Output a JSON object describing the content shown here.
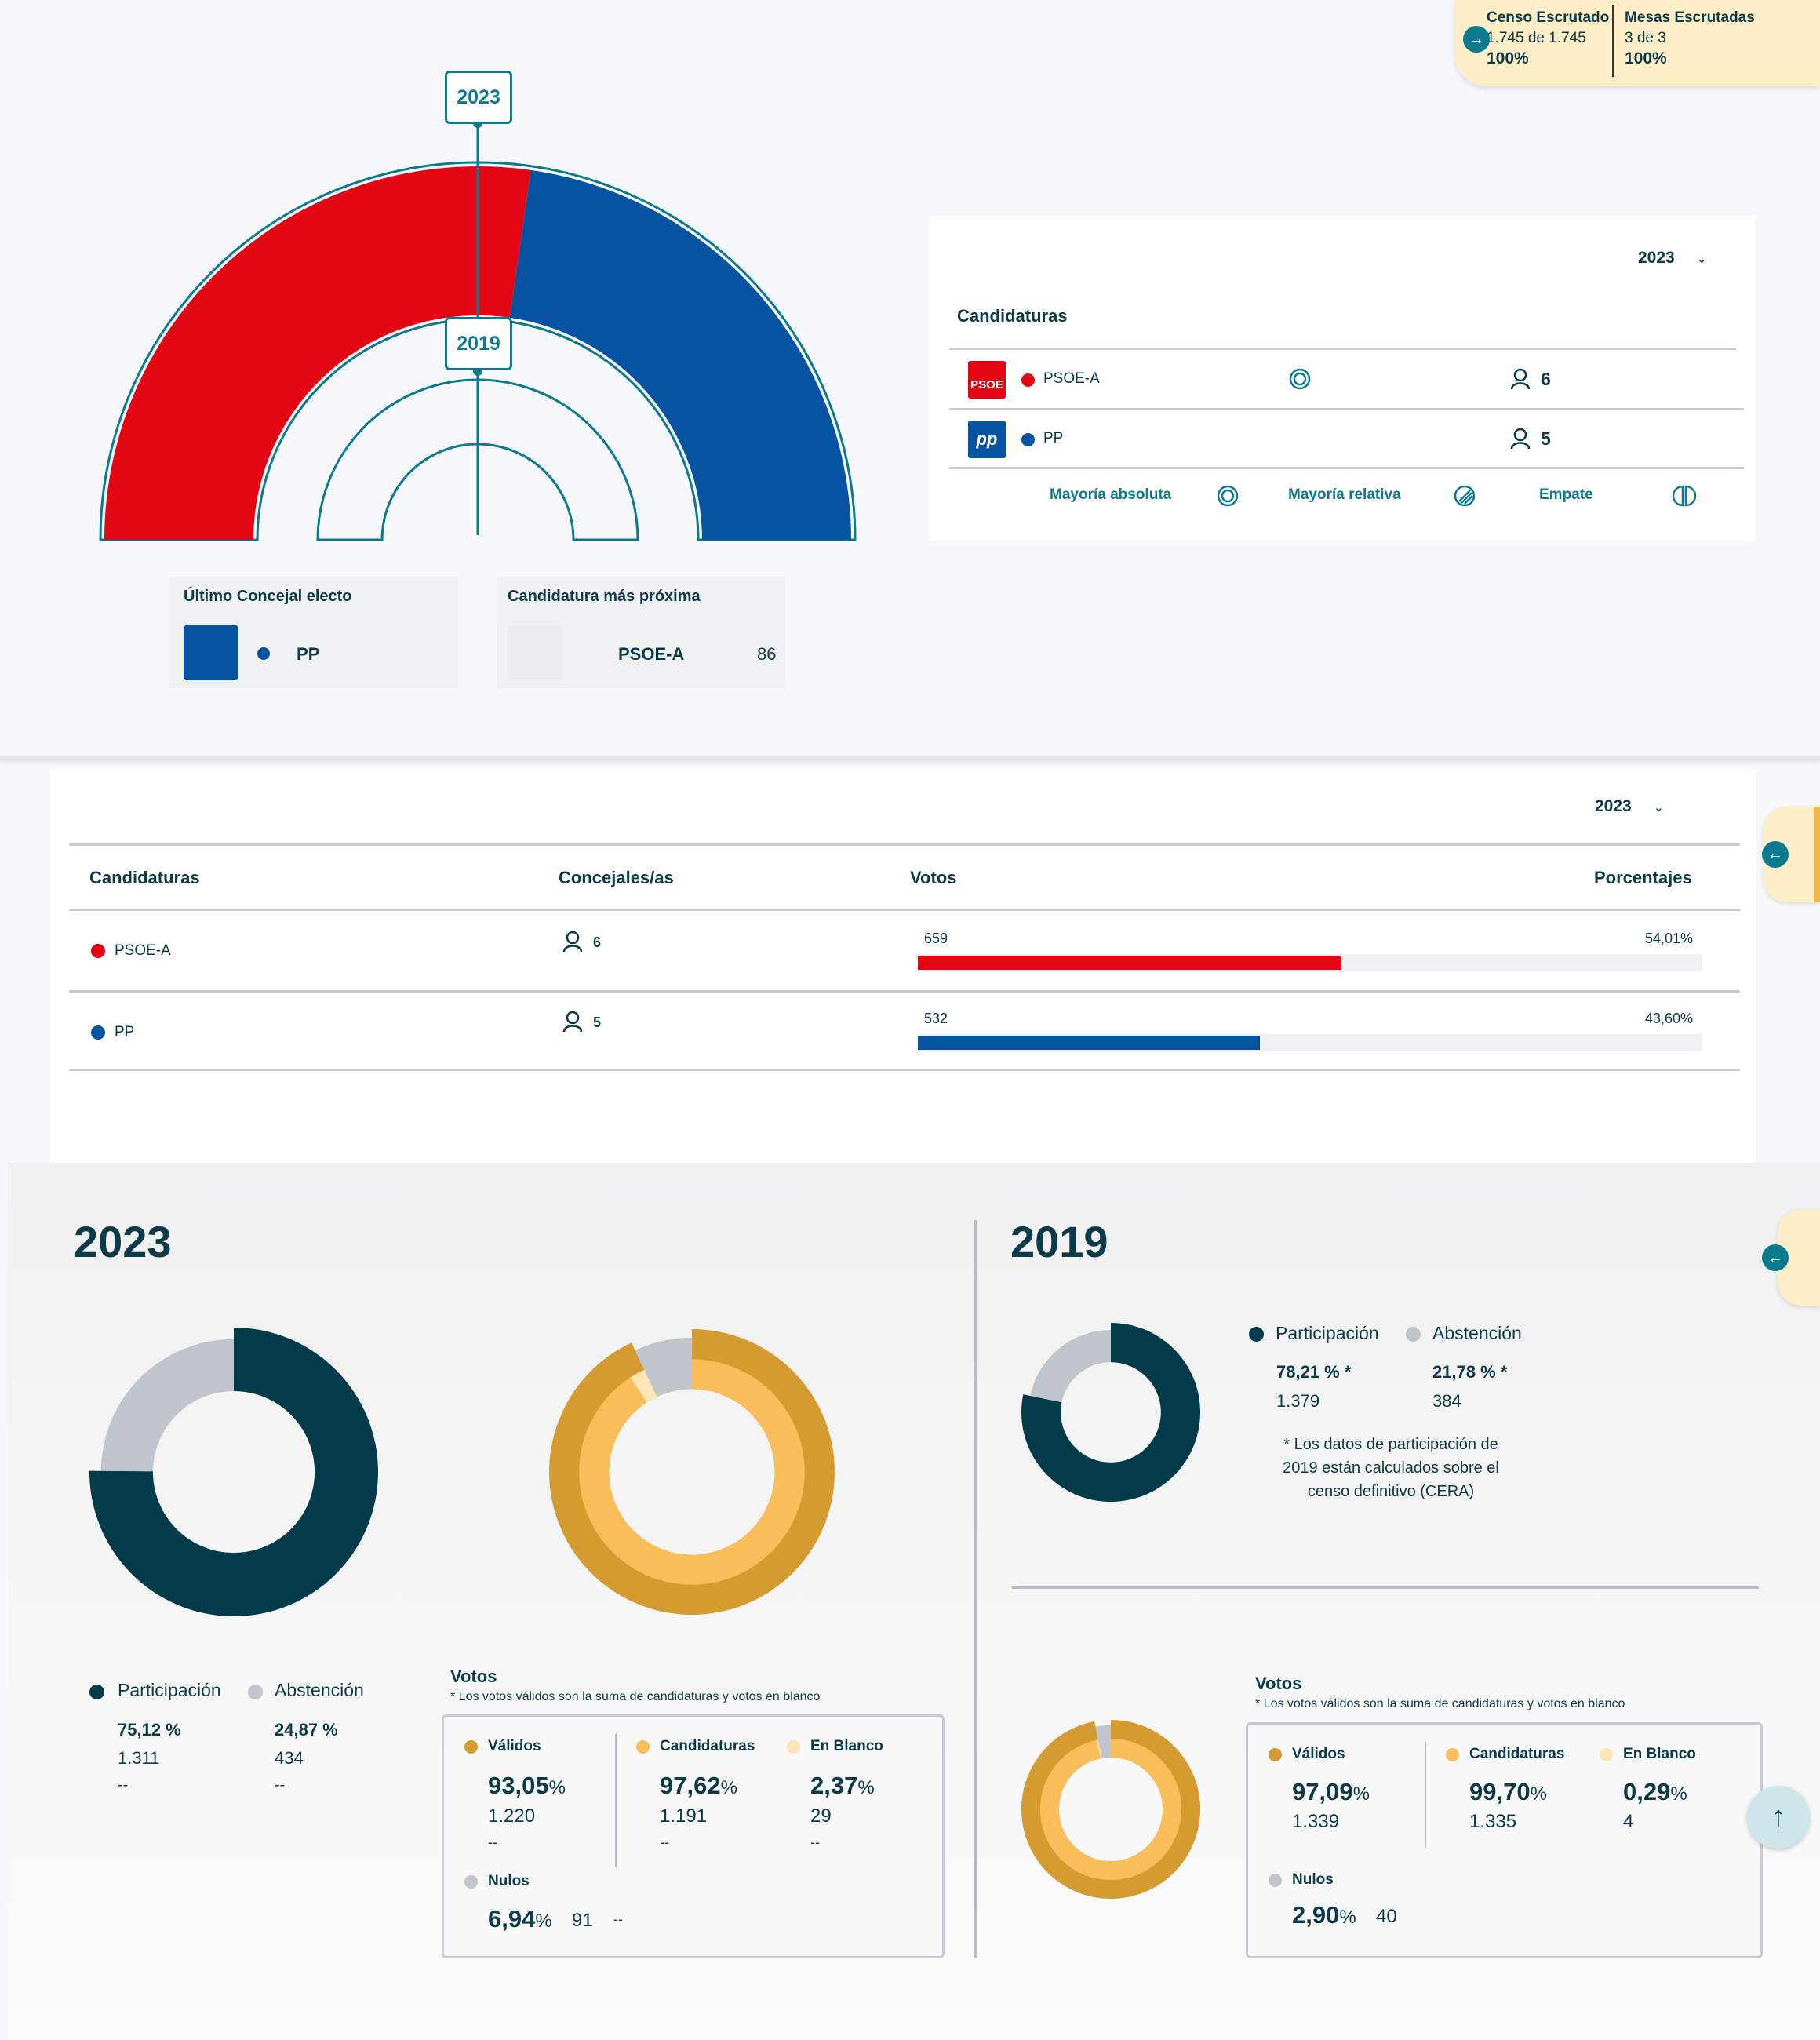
{
  "colors": {
    "psoe": "#e30613",
    "pp": "#0653a2",
    "teal": "#0b7a8f",
    "dark": "#043b4b",
    "grey": "#c0c4cc",
    "gold": "#d39b30",
    "yellow": "#f9be59",
    "pale": "#fde6b6",
    "banner": "#fdeec8"
  },
  "census": {
    "censo_label": "Censo Escrutado",
    "censo_value": "1.745 de 1.745",
    "censo_pct": "100%",
    "mesas_label": "Mesas Escrutadas",
    "mesas_value": "3 de 3",
    "mesas_pct": "100%",
    "arrow": "arrow-right-icon"
  },
  "hemicycle": {
    "outer_year": "2023",
    "inner_year": "2019"
  },
  "last_elected": {
    "label": "Último Concejal electo",
    "party": "PP"
  },
  "next_candidate": {
    "label": "Candidatura más próxima",
    "party": "PSOE-A",
    "value": "86"
  },
  "summary": {
    "year": "2023",
    "title": "Candidaturas",
    "rows": [
      {
        "logo": "PSOE",
        "party": "PSOE-A",
        "seats": "6",
        "color": "#e30613"
      },
      {
        "logo": "pp",
        "party": "PP",
        "seats": "5",
        "color": "#0653a2"
      }
    ],
    "legend": {
      "absolute": "Mayoría absoluta",
      "relative": "Mayoría relativa",
      "tie": "Empate"
    }
  },
  "results": {
    "year": "2023",
    "headers": {
      "party": "Candidaturas",
      "seats": "Concejales/as",
      "votes": "Votos",
      "pct": "Porcentajes"
    },
    "rows": [
      {
        "party": "PSOE-A",
        "seats": "6",
        "votes": "659",
        "pct": "54,01%",
        "fill": 0.5401,
        "color": "#e30613"
      },
      {
        "party": "PP",
        "seats": "5",
        "votes": "532",
        "pct": "43,60%",
        "fill": 0.436,
        "color": "#0653a2"
      }
    ]
  },
  "part2023": {
    "year": "2023",
    "participation_label": "Participación",
    "participation_pct": "75,12 %",
    "participation_n": "1.311",
    "participation_extra": "--",
    "abstention_label": "Abstención",
    "abstention_pct": "24,87 %",
    "abstention_n": "434",
    "abstention_extra": "--",
    "votes_title": "Votos",
    "votes_note": "* Los votos válidos son la suma de candidaturas y votos en blanco",
    "validos_label": "Válidos",
    "validos_pct": "93,05",
    "validos_n": "1.220",
    "validos_extra": "--",
    "cand_label": "Candidaturas",
    "cand_pct": "97,62",
    "cand_n": "1.191",
    "cand_extra": "--",
    "blanco_label": "En Blanco",
    "blanco_pct": "2,37",
    "blanco_n": "29",
    "blanco_extra": "--",
    "nulos_label": "Nulos",
    "nulos_pct": "6,94",
    "nulos_n": "91",
    "nulos_extra": "--",
    "pct_sign": "%"
  },
  "part2019": {
    "year": "2019",
    "participation_label": "Participación",
    "participation_pct": "78,21 % *",
    "participation_n": "1.379",
    "abstention_label": "Abstención",
    "abstention_pct": "21,78 % *",
    "abstention_n": "384",
    "note": "* Los datos de participación de 2019 están calculados sobre el censo definitivo (CERA)",
    "votes_title": "Votos",
    "votes_note": "* Los votos válidos son la suma de candidaturas y votos en blanco",
    "validos_label": "Válidos",
    "validos_pct": "97,09",
    "validos_n": "1.339",
    "cand_label": "Candidaturas",
    "cand_pct": "99,70",
    "cand_n": "1.335",
    "blanco_label": "En Blanco",
    "blanco_pct": "0,29",
    "blanco_n": "4",
    "nulos_label": "Nulos",
    "nulos_pct": "2,90",
    "nulos_n": "40",
    "pct_sign": "%"
  }
}
